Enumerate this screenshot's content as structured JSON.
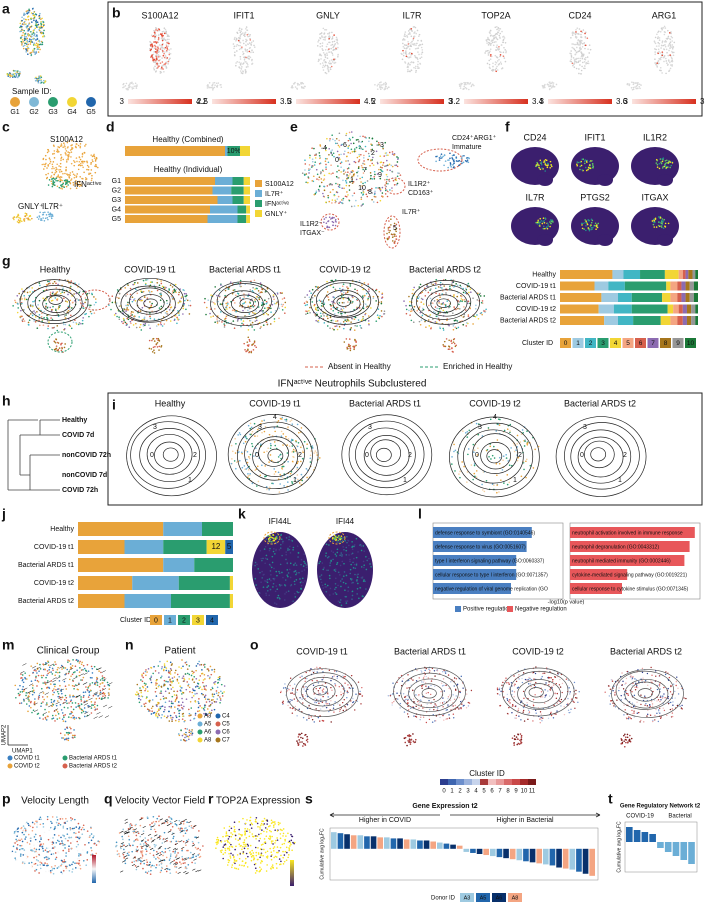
{
  "figure_title": "IFNᵃᶜᵗⁱᵛᵉ Neutrophils Subclustered",
  "a": {
    "letter": "a",
    "legend_title": "Sample ID:",
    "samples": [
      {
        "name": "G1",
        "color": "#e8a33a"
      },
      {
        "name": "G2",
        "color": "#7fb8d6"
      },
      {
        "name": "G3",
        "color": "#2a9d6f"
      },
      {
        "name": "G4",
        "color": "#f2d635"
      },
      {
        "name": "G5",
        "color": "#2166ac"
      }
    ]
  },
  "b": {
    "letter": "b",
    "genes": [
      {
        "name": "S100A12",
        "min": 3,
        "max": 4.2
      },
      {
        "name": "IFIT1",
        "min": 2.5,
        "max": 3.5
      },
      {
        "name": "GNLY",
        "min": 3,
        "max": 4.5
      },
      {
        "name": "IL7R",
        "min": 2,
        "max": 3
      },
      {
        "name": "TOP2A",
        "min": 3.2,
        "max": 3.4
      },
      {
        "name": "CD24",
        "min": 3,
        "max": 3.6
      },
      {
        "name": "ARG1",
        "min": 3,
        "max": 3.6
      }
    ]
  },
  "c": {
    "letter": "c",
    "labels": [
      "S100A12",
      "IFNᵃᶜᵗⁱᵛᵉ",
      "GNLY⁺",
      "IL7R⁺"
    ]
  },
  "d": {
    "letter": "d",
    "combined_title": "Healthy (Combined)",
    "combined_values": [
      80,
      2,
      10,
      8
    ],
    "combined_value_labels": [
      null,
      null,
      "10%",
      null
    ],
    "individual_title": "Healthy (Individual)",
    "categories": [
      "G1",
      "G2",
      "G3",
      "G4",
      "G5"
    ],
    "series": [
      {
        "name": "S100A12",
        "color": "#e8a33a",
        "values": [
          72,
          70,
          74,
          68,
          66
        ]
      },
      {
        "name": "IL7R⁺",
        "color": "#6baed6",
        "values": [
          14,
          15,
          12,
          22,
          24
        ]
      },
      {
        "name": "IFNᵃᶜᵗⁱᵛᵉ",
        "color": "#2a9d6f",
        "values": [
          9,
          10,
          9,
          7,
          7
        ]
      },
      {
        "name": "GNLY⁺",
        "color": "#f2d635",
        "values": [
          5,
          5,
          5,
          3,
          3
        ]
      }
    ],
    "xlim": [
      0,
      100
    ]
  },
  "e": {
    "letter": "e",
    "labels": [
      "CD24⁺ARG1⁺",
      "Immature",
      "IL1R2⁺",
      "CD163⁺",
      "IL1R2⁻",
      "ITGAX⁻",
      "IL7R⁺"
    ],
    "clusters": [
      "0",
      "1",
      "2",
      "3",
      "4",
      "5",
      "6",
      "7",
      "8",
      "9",
      "10"
    ]
  },
  "f": {
    "letter": "f",
    "genes": [
      "CD24",
      "IFIT1",
      "IL1R2",
      "IL7R",
      "PTGS2",
      "ITGAX"
    ]
  },
  "g": {
    "letter": "g",
    "panels": [
      "Healthy",
      "COVID-19 t1",
      "Bacterial ARDS t1",
      "COVID-19 t2",
      "Bacterial ARDS t2"
    ],
    "annotations": [
      "Absent in Healthy",
      "Enriched in Healthy"
    ],
    "categories": [
      "Healthy",
      "COVID-19 t1",
      "Bacterial ARDS t1",
      "COVID-19 t2",
      "Bacterial ARDS t2"
    ],
    "legend_title": "Cluster ID",
    "xlim": [
      0,
      100
    ],
    "series": [
      {
        "name": "0",
        "color": "#e8a33a",
        "values": [
          38,
          25,
          30,
          28,
          32
        ]
      },
      {
        "name": "1",
        "color": "#9ecae1",
        "values": [
          8,
          10,
          12,
          11,
          10
        ]
      },
      {
        "name": "2",
        "color": "#41b6c4",
        "values": [
          12,
          12,
          10,
          13,
          11
        ]
      },
      {
        "name": "3",
        "color": "#2a9d6f",
        "values": [
          18,
          30,
          22,
          26,
          20
        ]
      },
      {
        "name": "4",
        "color": "#f2d635",
        "values": [
          10,
          3,
          6,
          4,
          7
        ]
      },
      {
        "name": "5",
        "color": "#f4a582",
        "values": [
          3,
          5,
          5,
          4,
          5
        ]
      },
      {
        "name": "6",
        "color": "#d6604d",
        "values": [
          2,
          3,
          3,
          3,
          4
        ]
      },
      {
        "name": "7",
        "color": "#8c6bb1",
        "values": [
          2,
          3,
          3,
          3,
          3
        ]
      },
      {
        "name": "8",
        "color": "#a6761d",
        "values": [
          3,
          3,
          3,
          3,
          3
        ]
      },
      {
        "name": "9",
        "color": "#969696",
        "values": [
          2,
          3,
          3,
          3,
          3
        ]
      },
      {
        "name": "10",
        "color": "#1b7837",
        "values": [
          2,
          3,
          3,
          2,
          2
        ]
      }
    ]
  },
  "h": {
    "letter": "h",
    "leaves": [
      "Healthy",
      "COVID 7d",
      "nonCOVID 72h",
      "nonCOVID 7d",
      "COVID 72h"
    ]
  },
  "i": {
    "letter": "i",
    "panels": [
      "Healthy",
      "COVID-19 t1",
      "Bacterial ARDS t1",
      "COVID-19 t2",
      "Bacterial ARDS t2"
    ],
    "cluster_labels": [
      "0",
      "1",
      "2",
      "3",
      "4"
    ]
  },
  "j": {
    "letter": "j",
    "categories": [
      "Healthy",
      "COVID-19 t1",
      "Bacterial ARDS t1",
      "COVID-19 t2",
      "Bacterial ARDS t2"
    ],
    "legend_title": "Cluster ID",
    "xlim": [
      0,
      100
    ],
    "series": [
      {
        "name": "0",
        "color": "#e8a33a",
        "values": [
          55,
          30,
          55,
          35,
          30
        ]
      },
      {
        "name": "1",
        "color": "#6baed6",
        "values": [
          25,
          25,
          20,
          30,
          30
        ]
      },
      {
        "name": "2",
        "color": "#2a9d6f",
        "values": [
          20,
          28,
          25,
          33,
          38
        ]
      },
      {
        "name": "3",
        "color": "#f2d635",
        "values": [
          0,
          12,
          0,
          2,
          2
        ]
      },
      {
        "name": "4",
        "color": "#2166ac",
        "values": [
          0,
          5,
          0,
          0,
          0
        ]
      }
    ],
    "labeled": [
      [
        1,
        3
      ],
      [
        1,
        4
      ]
    ]
  },
  "k": {
    "letter": "k",
    "genes": [
      "IFI44L",
      "IFI44"
    ]
  },
  "l": {
    "letter": "l",
    "xlabel": "-log10(p value)",
    "xlim": [
      0,
      25
    ],
    "positive": {
      "name": "Positive regulation",
      "color": "#4a7fc1",
      "terms": [
        "defense response to symbiont (GO:0140546)",
        "defense response to virus (GO:0051607)",
        "type I interferon signaling pathway (GO:0060337)",
        "cellular response to type I interferon (GO:0071357)",
        "negative regulation of viral genome replication (GO"
      ],
      "values": [
        19,
        18,
        16,
        16,
        15
      ]
    },
    "negative": {
      "name": "Negative regulation",
      "color": "#e8575a",
      "terms": [
        "neutrophil activation involved in immune response",
        "neutrophil degranulation (GO:0043312)",
        "neutrophil mediated immunity (GO:0002446)",
        "cytokine-mediated signaling pathway (GO:0019221)",
        "cellular response to cytokine stimulus (GO:0071345)"
      ],
      "values": [
        24,
        23,
        22,
        11,
        10
      ]
    }
  },
  "m": {
    "letter": "m",
    "title": "Clinical Group",
    "groups": [
      {
        "name": "COVID t1",
        "color": "#3a7fc1"
      },
      {
        "name": "COVID t2",
        "color": "#e8a33a"
      },
      {
        "name": "Bacterial ARDS t1",
        "color": "#2a9d6f"
      },
      {
        "name": "Bacterial ARDS t2",
        "color": "#d6604d"
      }
    ],
    "xlabel": "UMAP1",
    "ylabel": "UMAP2"
  },
  "n": {
    "letter": "n",
    "title": "Patient",
    "patients": [
      {
        "name": "A3",
        "color": "#e8a33a"
      },
      {
        "name": "A5",
        "color": "#6baed6"
      },
      {
        "name": "A6",
        "color": "#2a9d6f"
      },
      {
        "name": "A8",
        "color": "#f2d635"
      },
      {
        "name": "C4",
        "color": "#2166ac"
      },
      {
        "name": "C5",
        "color": "#d6604d"
      },
      {
        "name": "C6",
        "color": "#8c6bb1"
      },
      {
        "name": "C7",
        "color": "#a6761d"
      }
    ]
  },
  "o": {
    "letter": "o",
    "panels": [
      "COVID-19 t1",
      "Bacterial ARDS t1",
      "COVID-19 t2",
      "Bacterial ARDS t2"
    ],
    "legend_title": "Cluster ID",
    "clusters": [
      {
        "name": "0",
        "color": "#2c3e8f"
      },
      {
        "name": "1",
        "color": "#3f66b0"
      },
      {
        "name": "2",
        "color": "#6d8fcc"
      },
      {
        "name": "3",
        "color": "#9cb3dd"
      },
      {
        "name": "4",
        "color": "#c7d4ec"
      },
      {
        "name": "5",
        "color": "#a83a3a"
      },
      {
        "name": "6",
        "color": "#f2c0c0"
      },
      {
        "name": "7",
        "color": "#e89a9a"
      },
      {
        "name": "8",
        "color": "#d96b6b"
      },
      {
        "name": "9",
        "color": "#c94848"
      },
      {
        "name": "10",
        "color": "#a52a2a"
      },
      {
        "name": "11",
        "color": "#7a1a1a"
      }
    ]
  },
  "p": {
    "letter": "p",
    "title": "Velocity Length"
  },
  "q": {
    "letter": "q",
    "title": "Velocity Vector Field"
  },
  "r": {
    "letter": "r",
    "title": "TOP2A Expression"
  },
  "s": {
    "letter": "s",
    "title": "Gene Expression t2",
    "left": "Higher in COVID",
    "right": "Higher in Bacterial",
    "ylabel": "Cumulative avg log₂FC",
    "ylim": [
      -3,
      2
    ],
    "values": [
      1.6,
      1.5,
      1.4,
      1.3,
      1.3,
      1.2,
      1.2,
      1.1,
      1.1,
      1.0,
      1.0,
      0.9,
      0.9,
      0.8,
      0.8,
      0.7,
      0.6,
      0.5,
      0.4,
      0.3,
      -0.3,
      -0.4,
      -0.5,
      -0.6,
      -0.7,
      -0.8,
      -0.9,
      -1.0,
      -1.1,
      -1.2,
      -1.3,
      -1.4,
      -1.5,
      -1.6,
      -1.8,
      -1.9,
      -2.0,
      -2.2,
      -2.4,
      -2.6
    ],
    "legend_title": "Donor ID",
    "donors": [
      {
        "name": "A3",
        "color": "#9ecae1"
      },
      {
        "name": "A5",
        "color": "#2166ac"
      },
      {
        "name": "A6",
        "color": "#08306b"
      },
      {
        "name": "A8",
        "color": "#f4a582"
      }
    ]
  },
  "t": {
    "letter": "t",
    "title": "Gene Regulatory Network t2",
    "groups": [
      "COVID-19",
      "Bacterial"
    ],
    "ylabel": "Cumulative avg log₂FC",
    "ylim": [
      -3,
      2
    ],
    "values": [
      1.5,
      1.2,
      1.0,
      0.8,
      -0.6,
      -1.0,
      -1.4,
      -1.8,
      -2.2
    ]
  }
}
